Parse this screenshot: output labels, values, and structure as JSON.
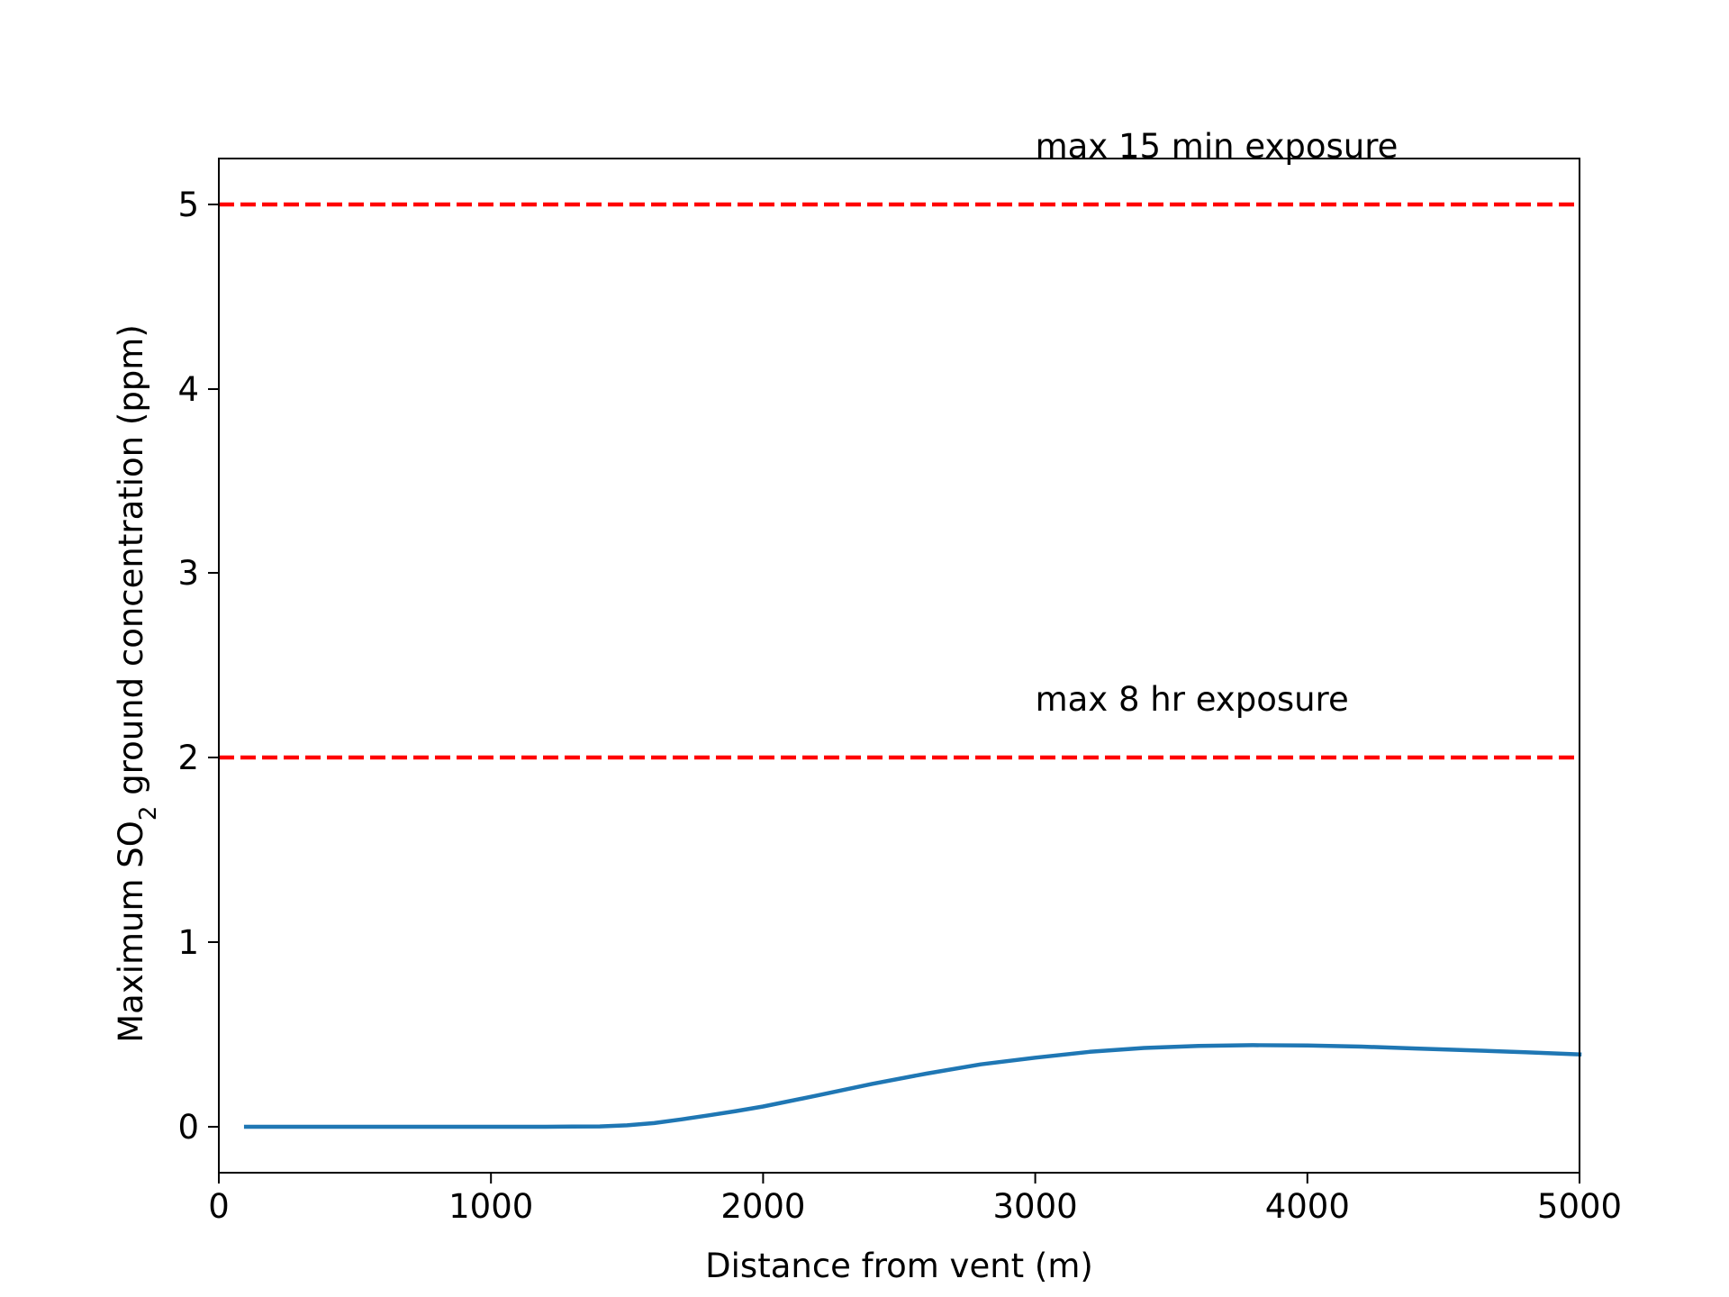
{
  "chart_data": {
    "type": "line",
    "title": "",
    "xlabel": "Distance from vent (m)",
    "ylabel_parts": {
      "before": "Maximum SO",
      "sub": "2",
      "after": " ground concentration (ppm)"
    },
    "xlim": [
      0,
      5000
    ],
    "ylim": [
      -0.25,
      5.25
    ],
    "y_scale": "piecewise-linear",
    "y_tick_positions": [
      0,
      1,
      2,
      3,
      4,
      5
    ],
    "x_ticks": [
      "0",
      "1000",
      "2000",
      "3000",
      "4000",
      "5000"
    ],
    "y_ticks": [
      "0",
      "1",
      "2",
      "3",
      "4",
      "5"
    ],
    "grid": false,
    "legend": "none",
    "series": [
      {
        "color": "#1f77b4",
        "x": [
          100,
          500,
          1000,
          1200,
          1400,
          1500,
          1600,
          1700,
          1800,
          1900,
          2000,
          2200,
          2400,
          2600,
          2800,
          3000,
          3200,
          3400,
          3600,
          3800,
          4000,
          4200,
          4400,
          4600,
          4800,
          5000
        ],
        "y": [
          0,
          0,
          0,
          0,
          0.002,
          0.008,
          0.02,
          0.04,
          0.062,
          0.085,
          0.11,
          0.17,
          0.232,
          0.288,
          0.338,
          0.374,
          0.406,
          0.427,
          0.438,
          0.442,
          0.44,
          0.434,
          0.424,
          0.414,
          0.404,
          0.392
        ]
      }
    ],
    "threshold_lines": [
      {
        "y": 5,
        "color": "#ff0000",
        "style": "dashed",
        "label": "max 15 min exposure",
        "label_x": 3000
      },
      {
        "y": 2,
        "color": "#ff0000",
        "style": "dashed",
        "label": "max 8 hr exposure",
        "label_x": 3000
      }
    ]
  }
}
